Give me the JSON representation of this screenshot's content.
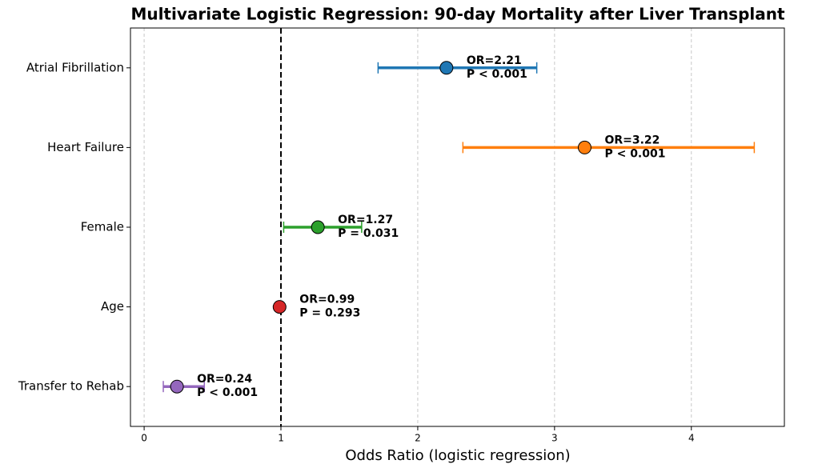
{
  "chart_data": {
    "type": "forest",
    "title": "Multivariate Logistic Regression: 90-day Mortality after Liver Transplant",
    "xlabel": "Odds Ratio (logistic regression)",
    "categories": [
      "Atrial Fibrillation",
      "Heart Failure",
      "Female",
      "Age",
      "Transfer to Rehab"
    ],
    "values": [
      2.21,
      3.22,
      1.27,
      0.99,
      0.24
    ],
    "value_labels": [
      "OR=2.21",
      "OR=3.22",
      "OR=1.27",
      "OR=0.99",
      "OR=0.24"
    ],
    "lower": [
      1.71,
      2.33,
      1.02,
      0.98,
      0.14
    ],
    "upper": [
      2.87,
      4.46,
      1.59,
      1.0,
      0.44
    ],
    "p_labels": [
      "P < 0.001",
      "P < 0.001",
      "P = 0.031",
      "P = 0.293",
      "P < 0.001"
    ],
    "colors": [
      "#1f77b4",
      "#ff7f0e",
      "#2ca02c",
      "#d62728",
      "#9467bd"
    ],
    "xlim": [
      -0.1,
      4.68
    ],
    "xticks": [
      0,
      1,
      2,
      3,
      4
    ],
    "grid": true,
    "refline": 1
  }
}
